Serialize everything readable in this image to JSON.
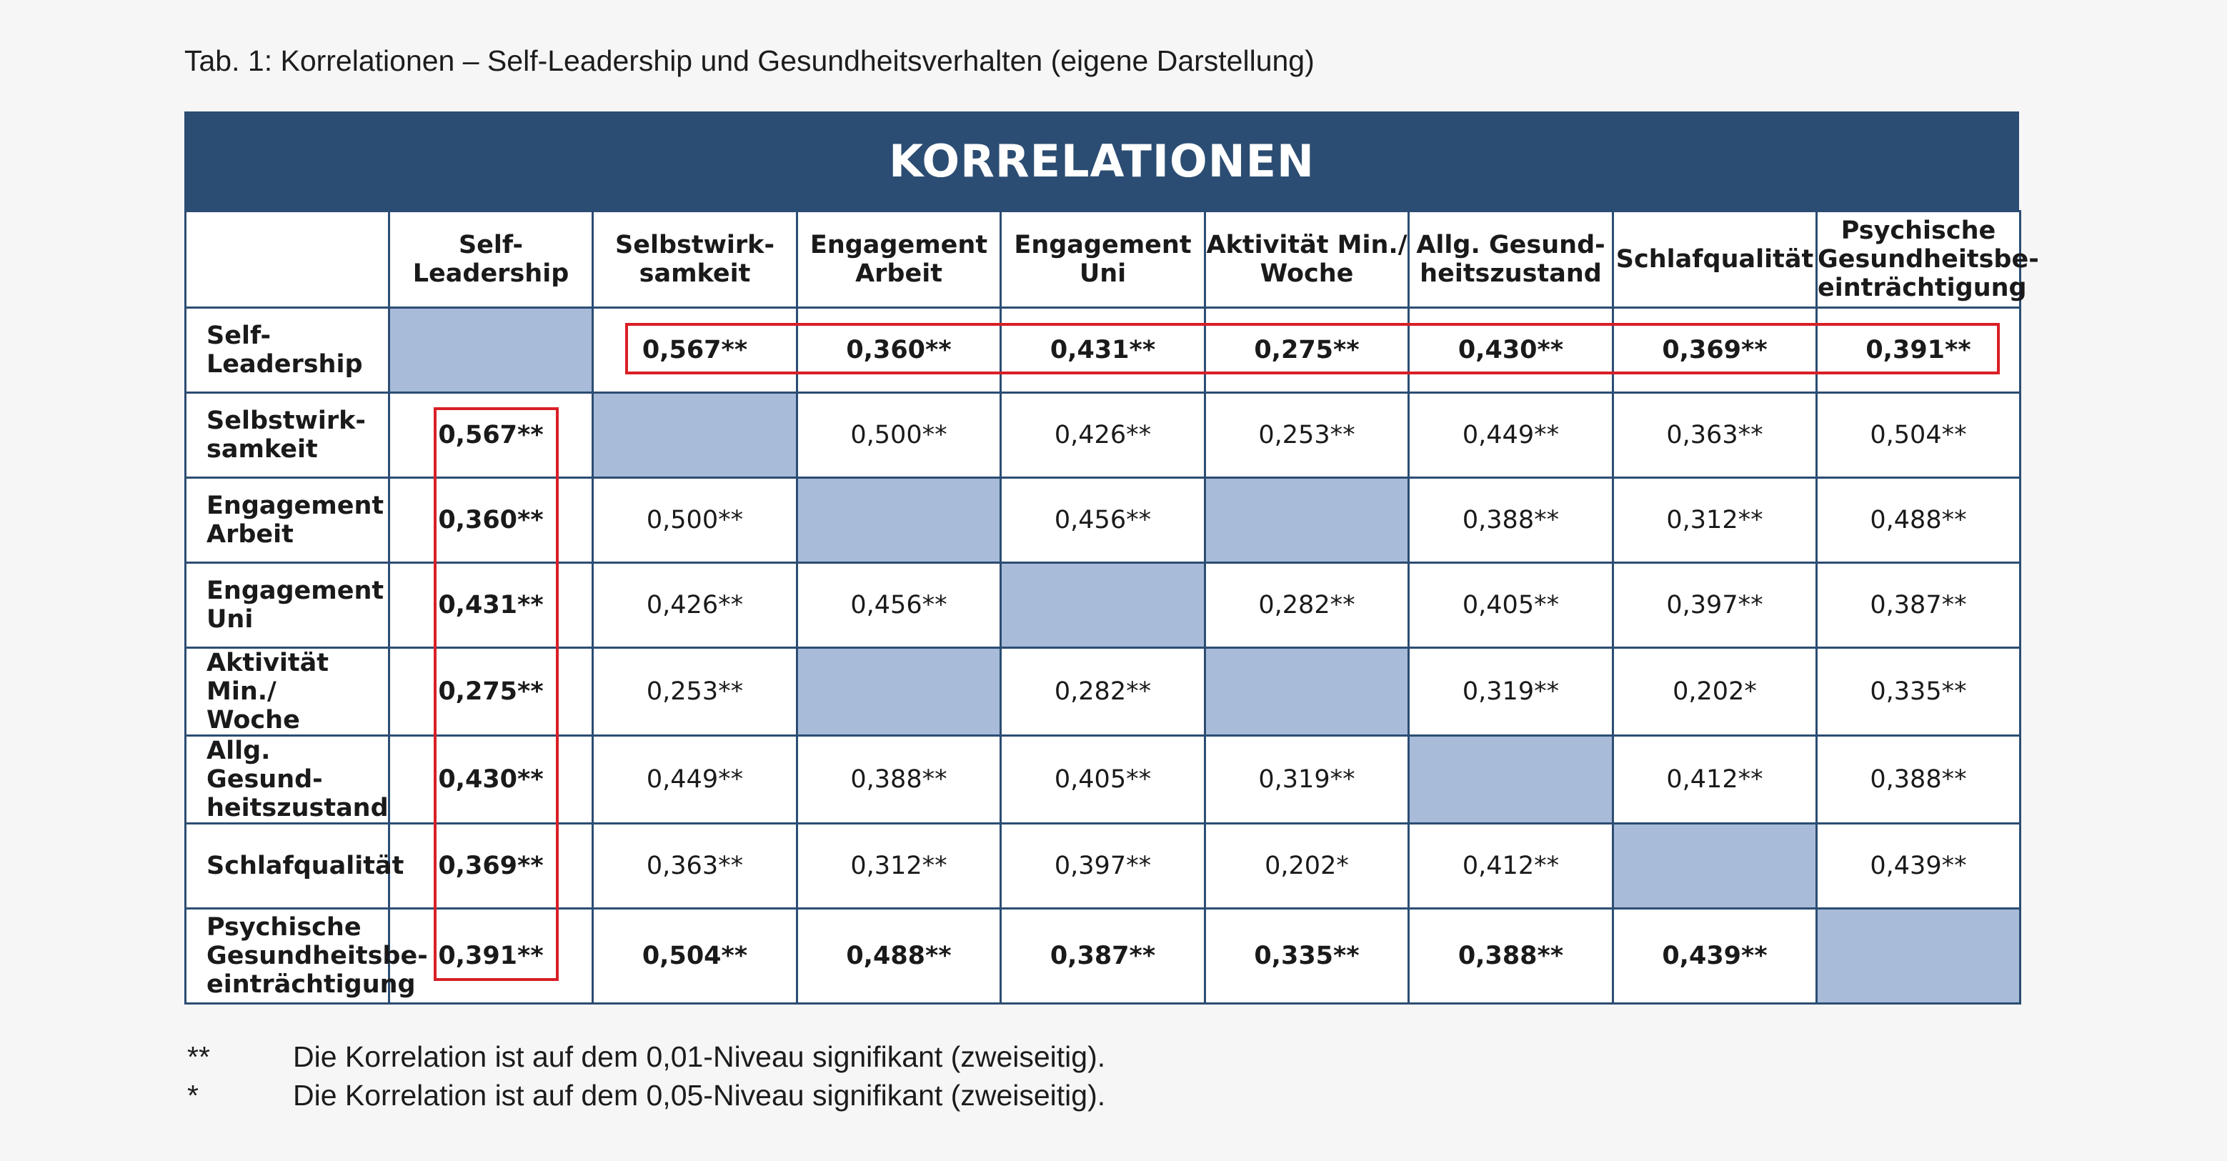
{
  "caption": "Tab. 1: Korrelationen – Self-Leadership und Gesundheitsverhalten (eigene Darstellung)",
  "table": {
    "title": "KORRELATIONEN",
    "columns": [
      "Self-Leadership",
      "Selbstwirk-\nsamkeit",
      "Engagement\nArbeit",
      "Engagement\nUni",
      "Aktivität Min./\nWoche",
      "Allg. Gesund-\nheitszustand",
      "Schlafqualität",
      "Psychische\nGesundheitsbe-\neinträchtigung"
    ],
    "rows": [
      {
        "label": "Self-Leadership",
        "cells": [
          "",
          "0,567**",
          "0,360**",
          "0,431**",
          "0,275**",
          "0,430**",
          "0,369**",
          "0,391**"
        ]
      },
      {
        "label": "Selbstwirk-\nsamkeit",
        "cells": [
          "0,567**",
          "",
          "0,500**",
          "0,426**",
          "0,253**",
          "0,449**",
          "0,363**",
          "0,504**"
        ]
      },
      {
        "label": "Engagement\nArbeit",
        "cells": [
          "0,360**",
          "0,500**",
          "",
          "0,456**",
          "",
          "0,388**",
          "0,312**",
          "0,488**"
        ]
      },
      {
        "label": "Engagement\nUni",
        "cells": [
          "0,431**",
          "0,426**",
          "0,456**",
          "",
          "0,282**",
          "0,405**",
          "0,397**",
          "0,387**"
        ]
      },
      {
        "label": "Aktivität Min./\nWoche",
        "cells": [
          "0,275**",
          "0,253**",
          "",
          "0,282**",
          "",
          "0,319**",
          "0,202*",
          "0,335**"
        ]
      },
      {
        "label": "Allg. Gesund-\nheitszustand",
        "cells": [
          "0,430**",
          "0,449**",
          "0,388**",
          "0,405**",
          "0,319**",
          "",
          "0,412**",
          "0,388**"
        ]
      },
      {
        "label": "Schlafqualität",
        "cells": [
          "0,369**",
          "0,363**",
          "0,312**",
          "0,397**",
          "0,202*",
          "0,412**",
          "",
          "0,439**"
        ]
      },
      {
        "label": "Psychische\nGesundheitsbe-\neinträchtigung",
        "cells": [
          "0,391**",
          "0,504**",
          "0,488**",
          "0,387**",
          "0,335**",
          "0,388**",
          "0,439**",
          ""
        ]
      }
    ],
    "shaded_cells": [
      [
        0,
        0
      ],
      [
        1,
        1
      ],
      [
        2,
        2
      ],
      [
        2,
        4
      ],
      [
        3,
        3
      ],
      [
        4,
        2
      ],
      [
        4,
        4
      ],
      [
        5,
        5
      ],
      [
        6,
        6
      ],
      [
        7,
        7
      ]
    ],
    "colors": {
      "header": "#2c4d73",
      "shaded": "#a8bbd9",
      "highlight": "#d91f26"
    }
  },
  "notes": [
    {
      "mark": "**",
      "text": "Die Korrelation ist auf dem 0,01-Niveau signifikant (zweiseitig)."
    },
    {
      "mark": "*",
      "text": "Die Korrelation ist auf dem 0,05-Niveau signifikant (zweiseitig)."
    }
  ]
}
